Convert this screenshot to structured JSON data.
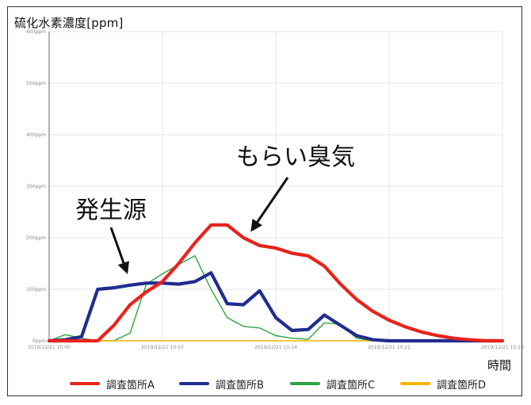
{
  "chart_data": {
    "type": "line",
    "ylabel": "硫化水素濃度[ppm]",
    "xlabel": "時間",
    "ylim": [
      0,
      600
    ],
    "y_ticks": [
      "0ppm",
      "100ppm",
      "200ppm",
      "300ppm",
      "400ppm",
      "500ppm",
      "600ppm"
    ],
    "x_ticks": [
      "2019/12/21 10:00",
      "2019/12/21 10:07",
      "2019/12/21 10:14",
      "2019/12/21 10:21",
      "2019/12/21 10:28"
    ],
    "grid": true,
    "legend_position": "bottom",
    "annotations": [
      {
        "text": "発生源",
        "points_to_series": "調査箇所B"
      },
      {
        "text": "もらい臭気",
        "points_to_series": "調査箇所A"
      }
    ],
    "series": [
      {
        "name": "調査箇所A",
        "color": "#e8231b",
        "x": [
          0,
          1,
          2,
          3,
          4,
          5,
          6,
          7,
          8,
          9,
          10,
          11,
          12,
          13,
          14,
          15,
          16,
          17,
          18,
          19,
          20,
          21,
          22,
          23,
          24,
          25,
          26,
          27,
          28
        ],
        "y": [
          0,
          0,
          0,
          0,
          30,
          70,
          95,
          115,
          150,
          190,
          225,
          225,
          200,
          185,
          180,
          170,
          165,
          145,
          110,
          80,
          57,
          40,
          27,
          17,
          10,
          5,
          2,
          0,
          0
        ]
      },
      {
        "name": "調査箇所B",
        "color": "#1f2d8f",
        "x": [
          0,
          1,
          2,
          3,
          4,
          5,
          6,
          7,
          8,
          9,
          10,
          11,
          12,
          13,
          14,
          15,
          16,
          17,
          18,
          19,
          20,
          21,
          22,
          23,
          24,
          25,
          26,
          27,
          28
        ],
        "y": [
          0,
          2,
          8,
          100,
          103,
          108,
          112,
          112,
          110,
          115,
          132,
          72,
          70,
          97,
          45,
          20,
          22,
          50,
          30,
          10,
          2,
          0,
          0,
          0,
          0,
          0,
          0,
          0,
          0
        ]
      },
      {
        "name": "調査箇所C",
        "color": "#2ca443",
        "x": [
          0,
          1,
          2,
          3,
          4,
          5,
          6,
          7,
          8,
          9,
          10,
          11,
          12,
          13,
          14,
          15,
          16,
          17,
          18,
          19,
          20,
          21,
          22,
          23,
          24,
          25,
          26,
          27,
          28
        ],
        "y": [
          0,
          12,
          5,
          0,
          0,
          15,
          110,
          130,
          148,
          165,
          100,
          45,
          28,
          25,
          10,
          5,
          3,
          35,
          32,
          5,
          0,
          0,
          0,
          0,
          0,
          0,
          0,
          0,
          0
        ]
      },
      {
        "name": "調査箇所D",
        "color": "#f5b400",
        "x": [
          0,
          1,
          2,
          3,
          4,
          5,
          6,
          7,
          8,
          9,
          10,
          11,
          12,
          13,
          14,
          15,
          16,
          17,
          18,
          19,
          20,
          21,
          22,
          23,
          24,
          25,
          26,
          27,
          28
        ],
        "y": [
          0,
          0,
          0,
          0,
          0,
          0,
          0,
          0,
          0,
          0,
          0,
          0,
          0,
          0,
          0,
          0,
          0,
          0,
          0,
          0,
          0,
          0,
          0,
          0,
          0,
          0,
          0,
          0,
          0
        ]
      }
    ]
  }
}
